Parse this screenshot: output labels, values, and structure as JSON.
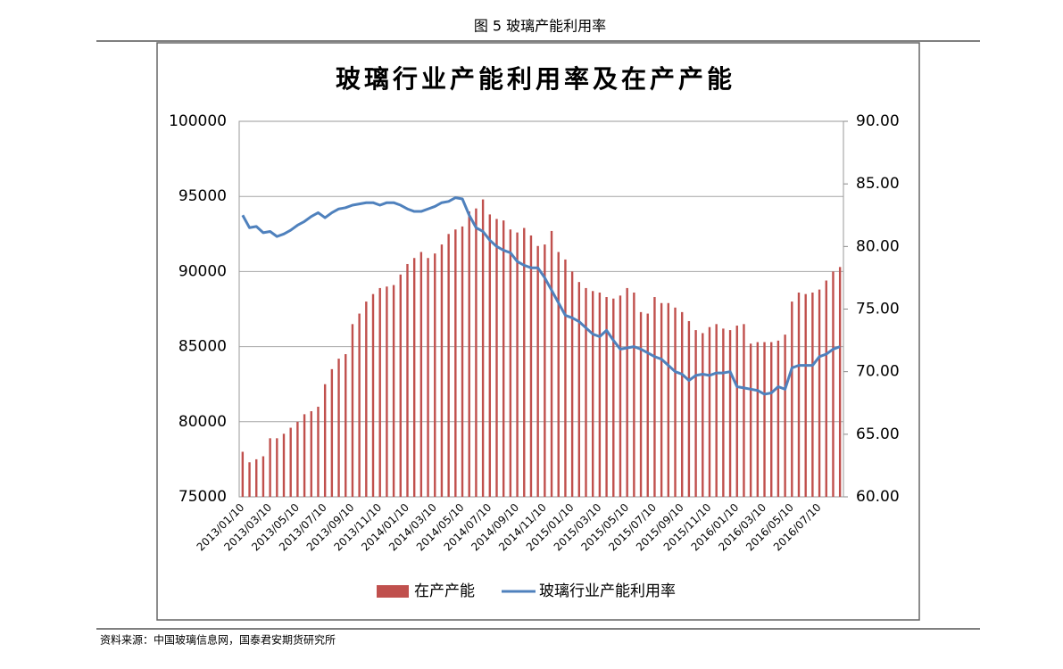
{
  "figure_caption": "图 5 玻璃产能利用率",
  "source": "资料来源：中国玻璃信息网，国泰君安期货研究所",
  "chart_data": {
    "type": "combo",
    "title": "玻璃行业产能利用率及在产产能",
    "categories": [
      "2013/01/10",
      null,
      null,
      null,
      "2013/03/10",
      null,
      null,
      null,
      "2013/05/10",
      null,
      null,
      null,
      "2013/07/10",
      null,
      null,
      null,
      "2013/09/10",
      null,
      null,
      null,
      "2013/11/10",
      null,
      null,
      null,
      "2014/01/10",
      null,
      null,
      null,
      "2014/03/10",
      null,
      null,
      null,
      "2014/05/10",
      null,
      null,
      null,
      "2014/07/10",
      null,
      null,
      null,
      "2014/09/10",
      null,
      null,
      null,
      "2014/11/10",
      null,
      null,
      null,
      "2015/01/10",
      null,
      null,
      null,
      "2015/03/10",
      null,
      null,
      null,
      "2015/05/10",
      null,
      null,
      null,
      "2015/07/10",
      null,
      null,
      null,
      "2015/09/10",
      null,
      null,
      null,
      "2015/11/10",
      null,
      null,
      null,
      "2016/01/10",
      null,
      null,
      null,
      "2016/03/10",
      null,
      null,
      null,
      "2016/05/10",
      null,
      null,
      null,
      "2016/07/10",
      null,
      null,
      null
    ],
    "series": [
      {
        "name": "在产产能",
        "type": "bar",
        "color": "#c0504d",
        "values": [
          78000,
          77300,
          77500,
          77700,
          78900,
          78900,
          79200,
          79600,
          80000,
          80500,
          80700,
          81000,
          82500,
          83500,
          84200,
          84500,
          86500,
          87200,
          88000,
          88500,
          88900,
          89000,
          89100,
          89800,
          90500,
          90900,
          91300,
          90900,
          91200,
          91800,
          92500,
          92800,
          93000,
          94000,
          94200,
          94800,
          93800,
          93500,
          93400,
          92800,
          92600,
          92900,
          92400,
          91700,
          91800,
          92700,
          91300,
          90800,
          90000,
          89300,
          88900,
          88700,
          88600,
          88300,
          88200,
          88400,
          88900,
          88600,
          87300,
          87200,
          88300,
          87900,
          87900,
          87600,
          87300,
          86700,
          86100,
          85900,
          86300,
          86500,
          86200,
          86100,
          86400,
          86500,
          85200,
          85300,
          85300,
          85300,
          85400,
          85800,
          88000,
          88600,
          88500,
          88600,
          88800,
          89400,
          90000,
          90300
        ]
      },
      {
        "name": "玻璃行业产能利用率",
        "type": "line",
        "axis": "y2",
        "color": "#4f81bd",
        "values": [
          82.5,
          81.5,
          81.6,
          81.1,
          81.2,
          80.8,
          81.0,
          81.3,
          81.7,
          82.0,
          82.4,
          82.7,
          82.3,
          82.7,
          83.0,
          83.1,
          83.3,
          83.4,
          83.5,
          83.5,
          83.3,
          83.5,
          83.5,
          83.3,
          83.0,
          82.8,
          82.8,
          83.0,
          83.2,
          83.5,
          83.6,
          83.9,
          83.8,
          82.5,
          81.5,
          81.2,
          80.5,
          80.0,
          79.7,
          79.5,
          78.8,
          78.5,
          78.3,
          78.3,
          77.5,
          76.5,
          75.5,
          74.5,
          74.3,
          74.0,
          73.5,
          73.0,
          72.8,
          73.3,
          72.5,
          71.8,
          71.9,
          72.0,
          71.8,
          71.5,
          71.2,
          71.0,
          70.5,
          70.0,
          69.8,
          69.3,
          69.7,
          69.8,
          69.7,
          69.9,
          69.9,
          70.0,
          68.8,
          68.7,
          68.6,
          68.5,
          68.2,
          68.3,
          68.8,
          68.6,
          70.3,
          70.5,
          70.5,
          70.5,
          71.2,
          71.4,
          71.8,
          72.0
        ]
      }
    ],
    "ylim": [
      75000,
      100000
    ],
    "yticks": [
      75000,
      80000,
      85000,
      90000,
      95000,
      100000
    ],
    "y2lim": [
      60,
      90
    ],
    "y2ticks": [
      {
        "value": 60,
        "label": "60.00"
      },
      {
        "value": 65,
        "label": "65.00"
      },
      {
        "value": 70,
        "label": "70.00"
      },
      {
        "value": 75,
        "label": "75.00"
      },
      {
        "value": 80,
        "label": "80.00"
      },
      {
        "value": 85,
        "label": "85.00"
      },
      {
        "value": 90,
        "label": "90.00"
      }
    ],
    "grid": true,
    "legend": "bottom"
  }
}
